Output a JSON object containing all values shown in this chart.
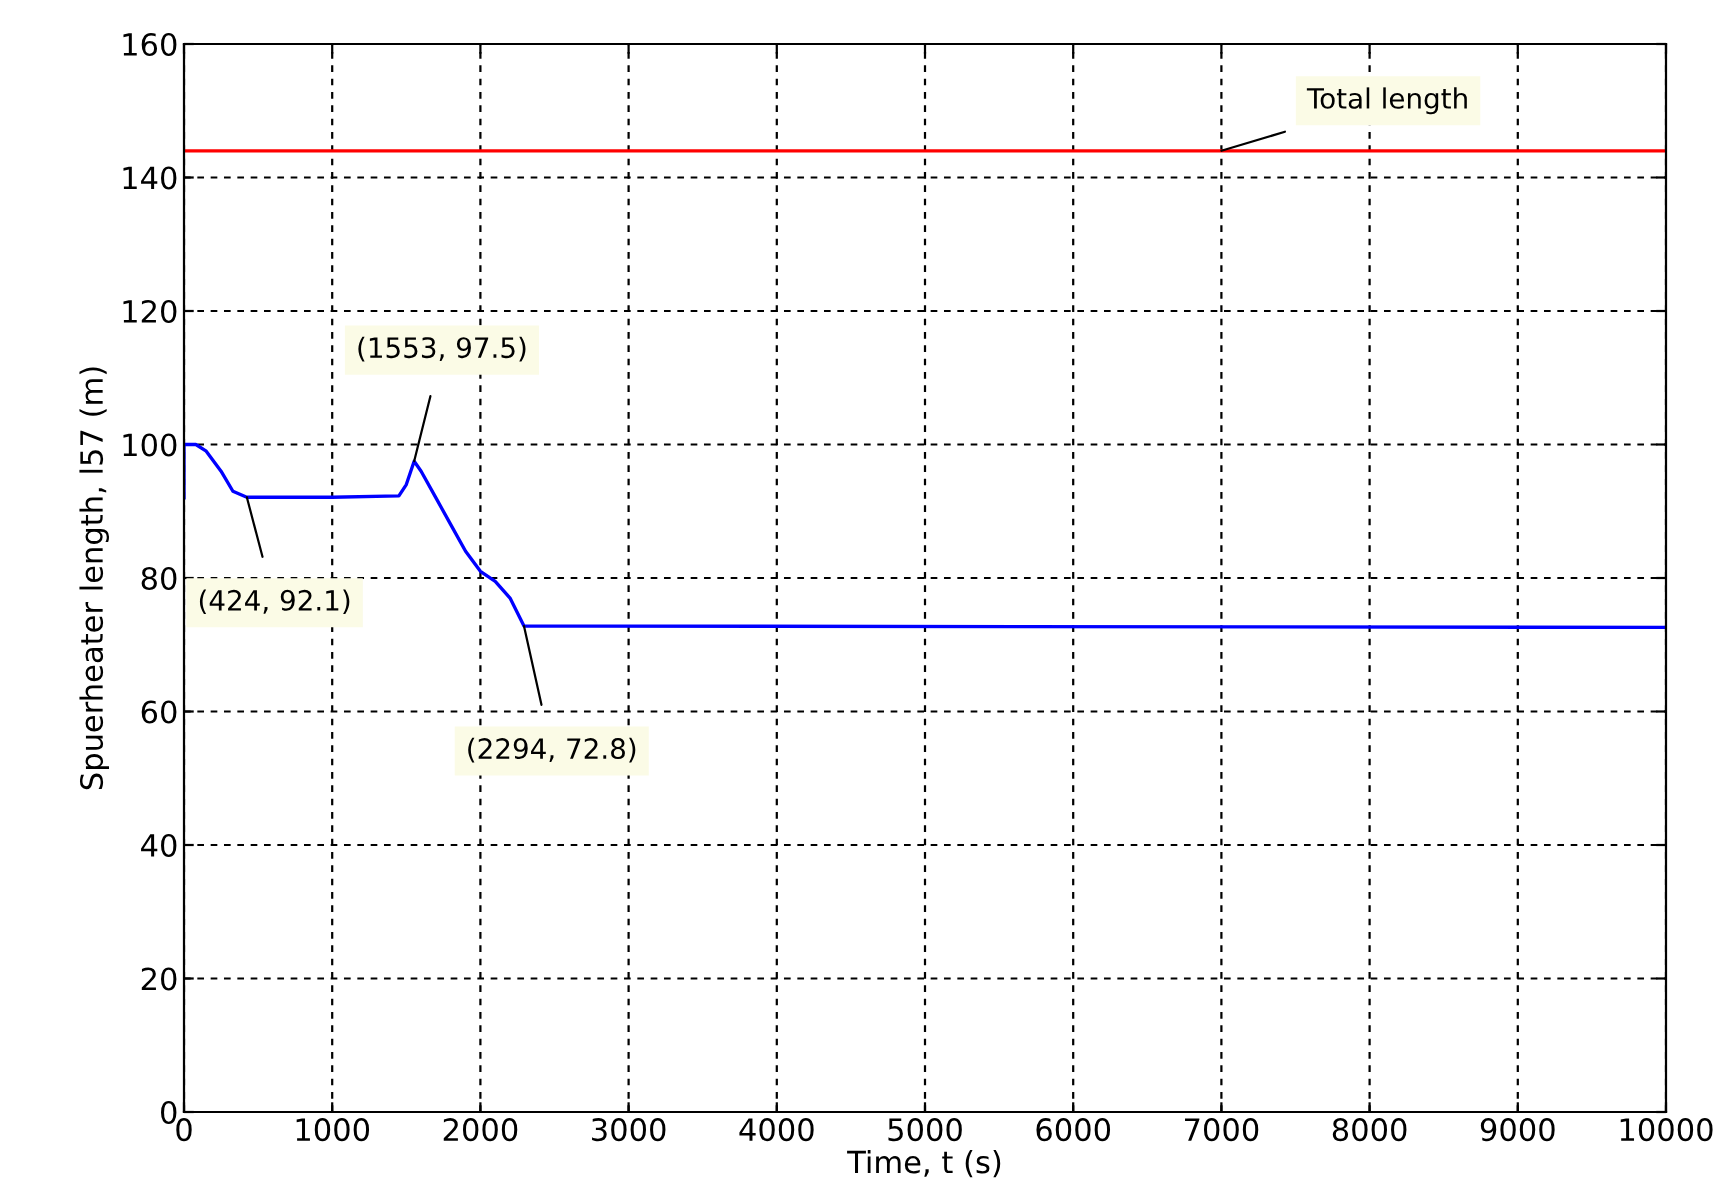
{
  "chart_data": {
    "type": "line",
    "xlabel": "Time, t (s)",
    "ylabel": "Spuerheater length, l57 (m)",
    "xlim": [
      0,
      10000
    ],
    "xticks": [
      0,
      1000,
      2000,
      3000,
      4000,
      5000,
      6000,
      7000,
      8000,
      9000,
      10000
    ],
    "ylim": [
      0,
      160
    ],
    "yticks": [
      0,
      20,
      40,
      60,
      80,
      100,
      120,
      140,
      160
    ],
    "grid": true,
    "line_style": "solid",
    "marker": "none",
    "series": [
      {
        "color": "#ff0000",
        "x": [
          0,
          10000
        ],
        "values": [
          144,
          144
        ]
      },
      {
        "color": "#0000ff",
        "x": [
          0,
          0,
          80,
          150,
          250,
          330,
          424,
          1000,
          1450,
          1500,
          1553,
          1600,
          1700,
          1800,
          1900,
          2000,
          2100,
          2200,
          2294,
          2700,
          10000
        ],
        "values": [
          92,
          100,
          100,
          99,
          96,
          93,
          92.1,
          92.1,
          92.3,
          94,
          97.5,
          96,
          92,
          88,
          84,
          81,
          79.5,
          77,
          72.8,
          72.8,
          72.6
        ]
      }
    ],
    "annotations": [
      {
        "text": "Total length",
        "x": 7000,
        "y": 144
      },
      {
        "text": "(1553, 97.5)",
        "x": 1553,
        "y": 97.5
      },
      {
        "text": "(424, 92.1)",
        "x": 424,
        "y": 92.1
      },
      {
        "text": "(2294, 72.8)",
        "x": 2294,
        "y": 72.8
      }
    ]
  }
}
